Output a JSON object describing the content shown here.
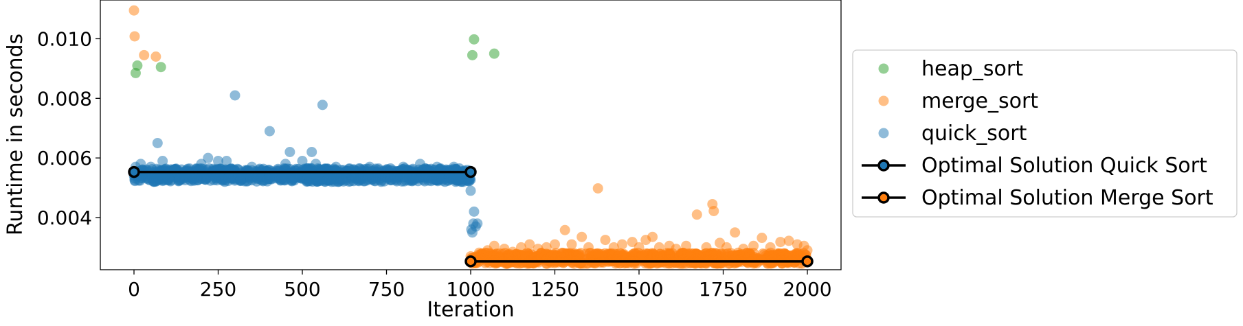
{
  "chart_data": {
    "type": "scatter",
    "xlabel": "Iteration",
    "ylabel": "Runtime in seconds",
    "xlim": [
      -100,
      2100
    ],
    "ylim": [
      0.00225,
      0.0113
    ],
    "x_ticks": [
      0,
      250,
      500,
      750,
      1000,
      1250,
      1500,
      1750,
      2000
    ],
    "x_tick_labels": [
      "0",
      "250",
      "500",
      "750",
      "1000",
      "1250",
      "1500",
      "1750",
      "2000"
    ],
    "y_ticks": [
      0.004,
      0.006,
      0.008,
      0.01
    ],
    "y_tick_labels": [
      "0.004",
      "0.006",
      "0.008",
      "0.010"
    ],
    "grid": false,
    "legend_position": "right",
    "series": [
      {
        "name": "heap_sort",
        "kind": "scatter",
        "color": "#2ca02c",
        "points": [
          [
            5,
            0.00885
          ],
          [
            10,
            0.0091
          ],
          [
            80,
            0.00905
          ],
          [
            1005,
            0.00945
          ],
          [
            1010,
            0.00998
          ],
          [
            1070,
            0.0095
          ]
        ]
      },
      {
        "name": "merge_sort",
        "kind": "scatter",
        "color": "#ff7f0e",
        "points": [
          [
            0,
            0.01095
          ],
          [
            2,
            0.01008
          ],
          [
            30,
            0.00945
          ],
          [
            65,
            0.0094
          ],
          [
            1000,
            0.0027
          ],
          [
            1025,
            0.00282
          ],
          [
            1050,
            0.0029
          ],
          [
            1070,
            0.00305
          ],
          [
            1100,
            0.00295
          ],
          [
            1125,
            0.00285
          ],
          [
            1150,
            0.003
          ],
          [
            1175,
            0.0031
          ],
          [
            1200,
            0.00295
          ],
          [
            1225,
            0.003
          ],
          [
            1250,
            0.0031
          ],
          [
            1280,
            0.00358
          ],
          [
            1300,
            0.0031
          ],
          [
            1330,
            0.00335
          ],
          [
            1350,
            0.003
          ],
          [
            1378,
            0.00498
          ],
          [
            1400,
            0.00325
          ],
          [
            1425,
            0.003
          ],
          [
            1450,
            0.0031
          ],
          [
            1480,
            0.00318
          ],
          [
            1500,
            0.003
          ],
          [
            1520,
            0.00325
          ],
          [
            1540,
            0.00335
          ],
          [
            1560,
            0.003
          ],
          [
            1590,
            0.00305
          ],
          [
            1610,
            0.00295
          ],
          [
            1640,
            0.00305
          ],
          [
            1672,
            0.0041
          ],
          [
            1700,
            0.003
          ],
          [
            1718,
            0.00445
          ],
          [
            1722,
            0.00422
          ],
          [
            1740,
            0.00315
          ],
          [
            1760,
            0.003
          ],
          [
            1785,
            0.0035
          ],
          [
            1810,
            0.00295
          ],
          [
            1840,
            0.00305
          ],
          [
            1865,
            0.00332
          ],
          [
            1890,
            0.003
          ],
          [
            1920,
            0.00318
          ],
          [
            1945,
            0.00322
          ],
          [
            1970,
            0.0031
          ],
          [
            1990,
            0.00305
          ],
          [
            2000,
            0.0029
          ]
        ],
        "band": {
          "x": [
            1000,
            2000
          ],
          "y": [
            0.00245,
            0.00282
          ]
        }
      },
      {
        "name": "quick_sort",
        "kind": "scatter",
        "color": "#1f77b4",
        "points": [
          [
            5,
            0.0057
          ],
          [
            20,
            0.0058
          ],
          [
            50,
            0.0057
          ],
          [
            70,
            0.0065
          ],
          [
            85,
            0.0059
          ],
          [
            120,
            0.0056
          ],
          [
            200,
            0.0058
          ],
          [
            220,
            0.006
          ],
          [
            250,
            0.0059
          ],
          [
            275,
            0.0059
          ],
          [
            300,
            0.0081
          ],
          [
            350,
            0.0057
          ],
          [
            403,
            0.0069
          ],
          [
            450,
            0.0058
          ],
          [
            463,
            0.0062
          ],
          [
            500,
            0.0059
          ],
          [
            528,
            0.0062
          ],
          [
            540,
            0.0058
          ],
          [
            560,
            0.00778
          ],
          [
            600,
            0.0057
          ],
          [
            650,
            0.0056
          ],
          [
            700,
            0.0057
          ],
          [
            800,
            0.0057
          ],
          [
            850,
            0.0058
          ],
          [
            900,
            0.0057
          ],
          [
            950,
            0.0057
          ],
          [
            990,
            0.0056
          ],
          [
            1000,
            0.0049
          ],
          [
            1002,
            0.0036
          ],
          [
            1005,
            0.0035
          ],
          [
            1008,
            0.0038
          ],
          [
            1010,
            0.0042
          ],
          [
            1015,
            0.0037
          ],
          [
            1020,
            0.0038
          ]
        ],
        "band": {
          "x": [
            0,
            1000
          ],
          "y": [
            0.0052,
            0.00565
          ]
        }
      },
      {
        "name": "Optimal Solution Quick Sort",
        "kind": "line",
        "color": "#000000",
        "marker_edge": "#000000",
        "marker_face": "#1f77b4",
        "points": [
          [
            0,
            0.00553
          ],
          [
            1000,
            0.00553
          ]
        ]
      },
      {
        "name": "Optimal Solution Merge Sort",
        "kind": "line",
        "color": "#000000",
        "marker_edge": "#000000",
        "marker_face": "#ff7f0e",
        "points": [
          [
            1000,
            0.00253
          ],
          [
            2000,
            0.00253
          ]
        ]
      }
    ]
  }
}
